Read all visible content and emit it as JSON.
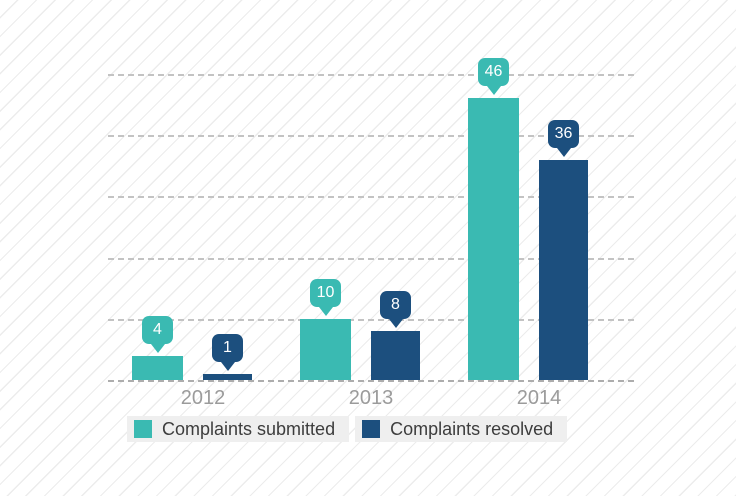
{
  "chart_data": {
    "type": "bar",
    "categories": [
      "2012",
      "2013",
      "2014"
    ],
    "series": [
      {
        "name": "Complaints submitted",
        "color": "#3ABAB2",
        "values": [
          4,
          10,
          46
        ]
      },
      {
        "name": "Complaints resolved",
        "color": "#1C4F7E",
        "values": [
          1,
          8,
          36
        ]
      }
    ],
    "title": "",
    "xlabel": "",
    "ylabel": "",
    "ylim": [
      0,
      50
    ],
    "gridline_step": 10,
    "gridline_style": "dashed",
    "legend_position": "bottom",
    "data_labels_style": "callout-bubble",
    "y_axis_labels_visible": false
  },
  "legend": {
    "items": [
      {
        "label": "Complaints submitted",
        "color": "#3ABAB2"
      },
      {
        "label": "Complaints resolved",
        "color": "#1C4F7E"
      }
    ]
  },
  "colors": {
    "gridline": "#c3c3c3",
    "baseline": "#adadad",
    "background_stripe": "#ececec",
    "x_label": "#9b9b9b",
    "legend_background": "#efefef",
    "legend_text": "#3d3d3d",
    "data_label_text": "#ffffff"
  }
}
